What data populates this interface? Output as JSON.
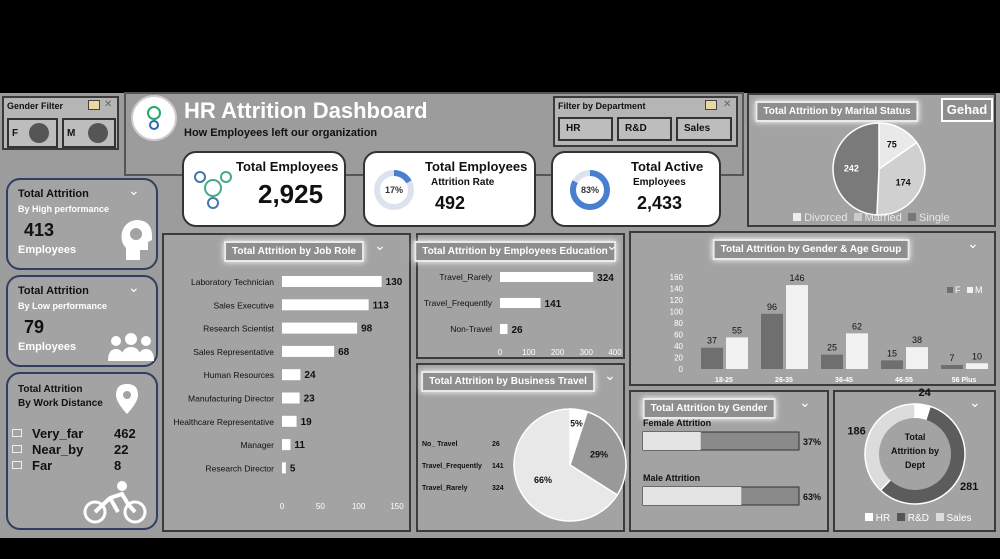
{
  "header": {
    "title": "HR Attrition Dashboard",
    "subtitle": "How Employees left our organization",
    "author_badge": "Gehad"
  },
  "gender_filter": {
    "title": "Gender Filter",
    "options": [
      "F",
      "M"
    ]
  },
  "dept_filter": {
    "title": "Filter by Department",
    "options": [
      "HR",
      "R&D",
      "Sales"
    ]
  },
  "kpis": {
    "total_employees": {
      "label": "Total Employees",
      "value": "2,925"
    },
    "attrition_rate": {
      "label": "Total Employees",
      "sublabel": "Attrition Rate",
      "value": "492",
      "percent": "17%",
      "fraction": 0.17
    },
    "active": {
      "label": "Total Active",
      "sublabel": "Employees",
      "value": "2,433",
      "percent": "83%",
      "fraction": 0.83
    }
  },
  "side_cards": {
    "high_perf": {
      "title": "Total Attrition",
      "subtitle": "By High performance",
      "value": "413",
      "unit": "Employees"
    },
    "low_perf": {
      "title": "Total Attrition",
      "subtitle": "By Low performance",
      "value": "79",
      "unit": "Employees"
    },
    "distance": {
      "title": "Total Attrition",
      "subtitle": "By Work Distance",
      "rows": [
        {
          "label": "Very_far",
          "value": "462"
        },
        {
          "label": "Near_by",
          "value": "22"
        },
        {
          "label": "Far",
          "value": "8"
        }
      ]
    }
  },
  "chart_data": [
    {
      "id": "job_role",
      "type": "bar",
      "orientation": "horizontal",
      "title": "Total Attrition by Job Role",
      "categories": [
        "Laboratory Technician",
        "Sales Executive",
        "Research Scientist",
        "Sales Representative",
        "Human Resources",
        "Manufacturing Director",
        "Healthcare Representative",
        "Manager",
        "Research Director"
      ],
      "values": [
        130,
        113,
        98,
        68,
        24,
        23,
        19,
        11,
        5
      ],
      "xlim": [
        0,
        150
      ],
      "xticks": [
        "0",
        "50",
        "100",
        "150"
      ]
    },
    {
      "id": "education",
      "type": "bar",
      "orientation": "horizontal",
      "title": "Total Attrition by Employees Education",
      "categories": [
        "Travel_Rarely",
        "Travel_Frequently",
        "Non-Travel"
      ],
      "values": [
        324,
        141,
        26
      ],
      "xlim": [
        0,
        400
      ],
      "xticks": [
        "0",
        "100",
        "200",
        "300",
        "400"
      ]
    },
    {
      "id": "business_travel",
      "type": "pie",
      "title": "Total Attrition by Business Travel",
      "legend": [
        {
          "label": "No_ Travel",
          "value": "26"
        },
        {
          "label": "Travel_Frequently",
          "value": "141"
        },
        {
          "label": "Travel_Rarely",
          "value": "324"
        }
      ],
      "slices": [
        {
          "label": "5%",
          "value": 5
        },
        {
          "label": "29%",
          "value": 29
        },
        {
          "label": "66%",
          "value": 66
        }
      ]
    },
    {
      "id": "marital",
      "type": "pie",
      "title": "Total Attrition by Marital Status",
      "slices": [
        {
          "name": "Divorced",
          "value": 75
        },
        {
          "name": "Married",
          "value": 174
        },
        {
          "name": "Single",
          "value": 242
        }
      ],
      "legend": [
        "Divorced",
        "Married",
        "Single"
      ]
    },
    {
      "id": "gender_age",
      "type": "bar",
      "title": "Total Attrition by Gender & Age Group",
      "categories": [
        "18-25",
        "26-35",
        "36-45",
        "46-55",
        "56 Plus"
      ],
      "series": [
        {
          "name": "F",
          "values": [
            37,
            96,
            25,
            15,
            7
          ]
        },
        {
          "name": "M",
          "values": [
            55,
            146,
            62,
            38,
            10
          ]
        }
      ],
      "ylim": [
        0,
        160
      ],
      "yticks": [
        "0",
        "20",
        "40",
        "60",
        "80",
        "100",
        "120",
        "140",
        "160"
      ]
    },
    {
      "id": "gender",
      "type": "bar",
      "orientation": "horizontal",
      "title": "Total Attrition by Gender",
      "categories": [
        "Female Attrition",
        "Male Attrition"
      ],
      "percents": [
        "37%",
        "63%"
      ],
      "values": [
        37,
        63
      ],
      "xlim": [
        0,
        100
      ]
    },
    {
      "id": "dept",
      "type": "pie",
      "variant": "donut",
      "title": "Total Attrition by Dept",
      "center_label": "Total Attrition by Dept",
      "slices": [
        {
          "name": "HR",
          "value": 24
        },
        {
          "name": "R&D",
          "value": 281
        },
        {
          "name": "Sales",
          "value": 186
        }
      ],
      "legend": [
        "HR",
        "R&D",
        "Sales"
      ]
    }
  ]
}
